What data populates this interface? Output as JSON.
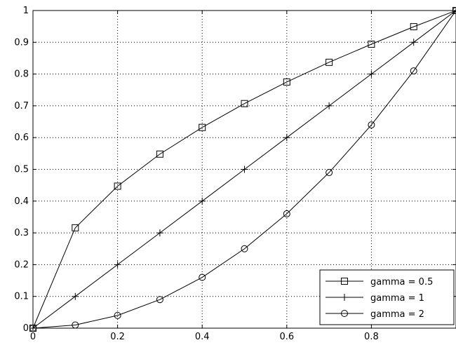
{
  "chart_data": {
    "type": "line",
    "title": "",
    "xlabel": "",
    "ylabel": "",
    "xlim": [
      0,
      1
    ],
    "ylim": [
      0,
      1
    ],
    "grid": true,
    "x_ticks": [
      0,
      0.2,
      0.4,
      0.6,
      0.8
    ],
    "x_tick_labels": [
      "0",
      "0.2",
      "0.4",
      "0.6",
      "0.8"
    ],
    "y_ticks": [
      0,
      0.1,
      0.2,
      0.3,
      0.4,
      0.5,
      0.6,
      0.7,
      0.8,
      0.9,
      1
    ],
    "y_tick_labels": [
      "0",
      "0.1",
      "0.2",
      "0.3",
      "0.4",
      "0.5",
      "0.6",
      "0.7",
      "0.8",
      "0.9",
      "1"
    ],
    "x": [
      0,
      0.1,
      0.2,
      0.3,
      0.4,
      0.5,
      0.6,
      0.7,
      0.8,
      0.9,
      1.0
    ],
    "series": [
      {
        "name": "gamma = 0.5",
        "marker": "square",
        "values": [
          0,
          0.316,
          0.447,
          0.548,
          0.632,
          0.707,
          0.775,
          0.837,
          0.894,
          0.949,
          1.0
        ]
      },
      {
        "name": "gamma = 1",
        "marker": "plus",
        "values": [
          0,
          0.1,
          0.2,
          0.3,
          0.4,
          0.5,
          0.6,
          0.7,
          0.8,
          0.9,
          1.0
        ]
      },
      {
        "name": "gamma = 2",
        "marker": "circle",
        "values": [
          0,
          0.01,
          0.04,
          0.09,
          0.16,
          0.25,
          0.36,
          0.49,
          0.64,
          0.81,
          1.0
        ]
      }
    ],
    "legend_position": "bottom-right",
    "line_color": "#000000"
  }
}
